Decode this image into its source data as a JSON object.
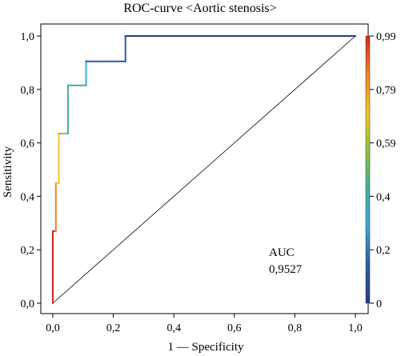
{
  "chart_data": {
    "type": "line",
    "title": "ROC-curve <Aortic stenosis>",
    "xlabel": "1 — Specificity",
    "ylabel": "Sensitivity",
    "xlim": [
      0,
      1
    ],
    "ylim": [
      0,
      1
    ],
    "x_ticks": [
      "0,0",
      "0,2",
      "0,4",
      "0,6",
      "0,8",
      "1,0"
    ],
    "y_ticks": [
      "0,0",
      "0,2",
      "0,4",
      "0,6",
      "0,8",
      "1,0"
    ],
    "series": [
      {
        "points": [
          {
            "x": 0.0,
            "y": 0.0
          },
          {
            "x": 0.0,
            "y": 0.27
          },
          {
            "x": 0.01,
            "y": 0.27
          },
          {
            "x": 0.01,
            "y": 0.45
          },
          {
            "x": 0.02,
            "y": 0.45
          },
          {
            "x": 0.02,
            "y": 0.635
          },
          {
            "x": 0.05,
            "y": 0.635
          },
          {
            "x": 0.05,
            "y": 0.815
          },
          {
            "x": 0.11,
            "y": 0.815
          },
          {
            "x": 0.11,
            "y": 0.905
          },
          {
            "x": 0.24,
            "y": 0.905
          },
          {
            "x": 0.24,
            "y": 1.0
          },
          {
            "x": 1.0,
            "y": 1.0
          }
        ]
      }
    ],
    "reference_line": {
      "from": [
        0,
        0
      ],
      "to": [
        1,
        1
      ]
    },
    "annotation": {
      "label": "AUC",
      "value": "0,9527"
    },
    "colorbar": {
      "ticks": [
        "0,99",
        "0,79",
        "0,59",
        "0,4",
        "0,2",
        "0"
      ],
      "colors": [
        "#d42a1f",
        "#f08228",
        "#f6c627",
        "#8fc43a",
        "#3fb0a0",
        "#3ca6d8",
        "#2a5aa8",
        "#263f8e"
      ]
    }
  }
}
